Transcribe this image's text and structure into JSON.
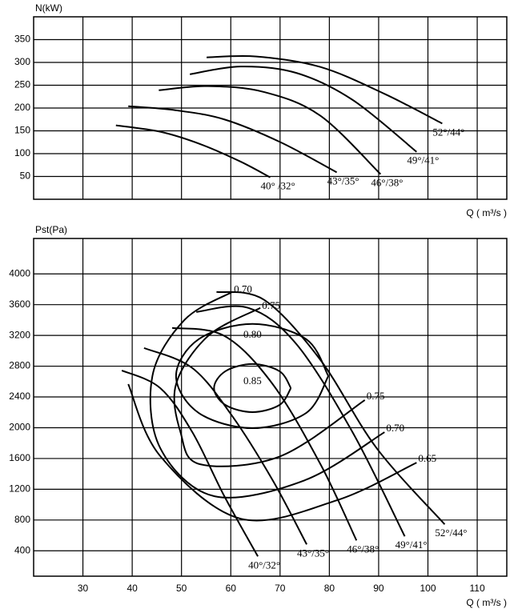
{
  "chart_data": [
    {
      "type": "line",
      "ylabel": "N(kW)",
      "xlabel": "Q ( m³/s )",
      "color": "#000000",
      "xlim": [
        20,
        116
      ],
      "xticks": [
        30,
        40,
        50,
        60,
        70,
        80,
        90,
        100,
        110
      ],
      "xtick_labels": false,
      "ylim": [
        0,
        400
      ],
      "yticks": [
        50,
        100,
        150,
        200,
        250,
        300,
        350
      ],
      "grid": true,
      "series": [
        {
          "name": "40° /32°",
          "x": [
            36.7,
            45.7,
            53.8,
            61.9,
            68.0
          ],
          "values": [
            162,
            148,
            121,
            83,
            48
          ]
        },
        {
          "name": "43°/35°",
          "x": [
            39.2,
            48.9,
            58.7,
            70.1,
            81.5
          ],
          "values": [
            204,
            195,
            175,
            125,
            59
          ]
        },
        {
          "name": "46°/38°",
          "x": [
            45.4,
            55.4,
            66.8,
            78.2,
            90.4
          ],
          "values": [
            239,
            248,
            235,
            183,
            55
          ]
        },
        {
          "name": "49°/41°",
          "x": [
            51.7,
            62.0,
            73.3,
            84.7,
            97.7
          ],
          "values": [
            274,
            291,
            277,
            218,
            104
          ]
        },
        {
          "name": "52°/44°",
          "x": [
            55.1,
            65.2,
            78.2,
            91.2,
            102.9
          ],
          "values": [
            311,
            313,
            290,
            231,
            166
          ]
        }
      ]
    },
    {
      "type": "line",
      "ylabel": "Pst(Pa)",
      "xlabel": "Q ( m³/s )",
      "color": "#000000",
      "xlim": [
        20,
        116
      ],
      "xticks": [
        30,
        40,
        50,
        60,
        70,
        80,
        90,
        100,
        110
      ],
      "xtick_labels": true,
      "ylim": [
        70,
        4460
      ],
      "yticks": [
        400,
        800,
        1200,
        1600,
        2000,
        2400,
        2800,
        3200,
        3600,
        4000
      ],
      "grid": true,
      "series": [
        {
          "name": "40°/32°",
          "x": [
            37.9,
            45.7,
            52.2,
            58.7,
            65.5
          ],
          "values": [
            2744,
            2515,
            1942,
            1109,
            327
          ]
        },
        {
          "name": "43°/35°",
          "x": [
            42.4,
            52.2,
            60.3,
            68.5,
            75.4
          ],
          "values": [
            3036,
            2776,
            2151,
            1317,
            483
          ]
        },
        {
          "name": "46°/38°",
          "x": [
            48.1,
            58.7,
            68.5,
            78.2,
            85.5
          ],
          "values": [
            3297,
            3193,
            2567,
            1525,
            535
          ]
        },
        {
          "name": "49°/41°",
          "x": [
            53.0,
            63.6,
            73.3,
            84.7,
            95.3
          ],
          "values": [
            3505,
            3557,
            3088,
            1942,
            588
          ]
        },
        {
          "name": "52°/44°",
          "x": [
            57.1,
            66.8,
            78.2,
            89.6,
            103.4
          ],
          "values": [
            3766,
            3661,
            2880,
            1734,
            744
          ]
        }
      ],
      "contours": [
        {
          "name": "0.85",
          "x": [
            72.2,
            69.9,
            64.4,
            58.9,
            56.6,
            58.9,
            64.4,
            69.9,
            72.2
          ],
          "values": [
            2515,
            2734,
            2828,
            2734,
            2515,
            2296,
            2203,
            2296,
            2515
          ]
        },
        {
          "name": "0.80",
          "x": [
            79.8,
            75.3,
            64.4,
            53.5,
            48.9,
            53.5,
            64.4,
            75.3,
            79.8
          ],
          "values": [
            2672,
            3151,
            3349,
            3151,
            2672,
            2192,
            1994,
            2192,
            2672
          ]
        },
        {
          "name": "0.75",
          "x": [
            66.0,
            55.4,
            48.9,
            49.8,
            53.8,
            70.1,
            87.2
          ],
          "values": [
            3557,
            3193,
            2567,
            1942,
            1525,
            1630,
            2359
          ]
        },
        {
          "name": "0.70",
          "x": [
            60.3,
            50.6,
            44.1,
            45.7,
            56.7,
            75.0,
            91.2
          ],
          "values": [
            3766,
            3401,
            2672,
            1734,
            1109,
            1317,
            1942
          ]
        },
        {
          "name": "0.65",
          "x": [
            39.2,
            45.7,
            62.0,
            81.5,
            97.7
          ],
          "values": [
            2567,
            1630,
            817,
            1056,
            1546
          ]
        }
      ]
    }
  ]
}
